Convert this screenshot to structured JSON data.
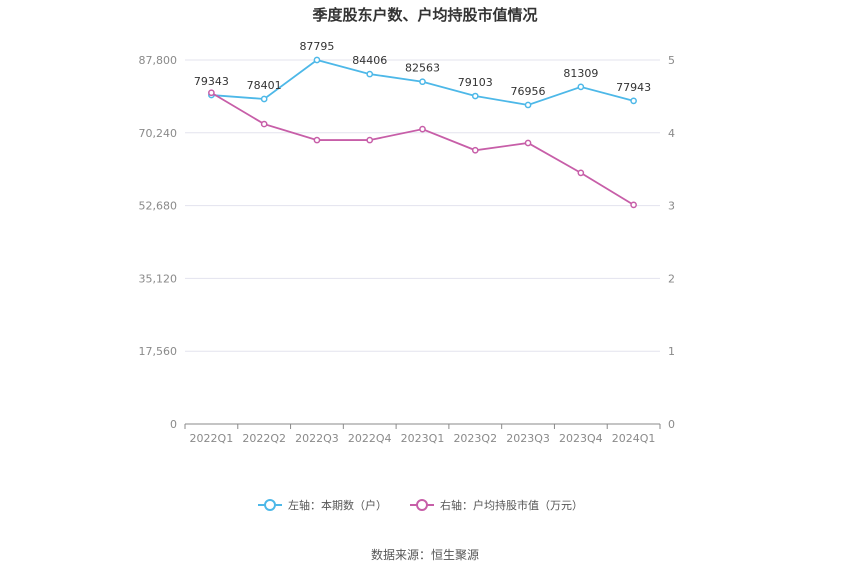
{
  "chart_data": {
    "type": "line",
    "title": "季度股东户数、户均持股市值情况",
    "categories": [
      "2022Q1",
      "2022Q2",
      "2022Q3",
      "2022Q4",
      "2023Q1",
      "2023Q2",
      "2023Q3",
      "2023Q4",
      "2024Q1"
    ],
    "left_axis": {
      "ticks": [
        "0",
        "17,560",
        "35,120",
        "52,680",
        "70,240",
        "87,800"
      ],
      "ylim": [
        0,
        87800
      ]
    },
    "right_axis": {
      "ticks": [
        "0",
        "1",
        "2",
        "3",
        "4",
        "5"
      ],
      "ylim": [
        0,
        5
      ]
    },
    "series": [
      {
        "name": "左轴：本期数（户）",
        "axis": "left",
        "color": "#4db8e8",
        "values": [
          79343,
          78401,
          87795,
          84406,
          82563,
          79103,
          76956,
          81309,
          77943
        ],
        "labels": [
          "79343",
          "78401",
          "87795",
          "84406",
          "82563",
          "79103",
          "76956",
          "81309",
          "77943"
        ]
      },
      {
        "name": "右轴：户均持股市值（万元）",
        "axis": "right",
        "color": "#c75ea8",
        "values": [
          4.55,
          4.12,
          3.9,
          3.9,
          4.05,
          3.76,
          3.86,
          3.45,
          3.01
        ]
      }
    ],
    "grid": true,
    "legend_position": "bottom"
  },
  "source_text": "数据来源：恒生聚源"
}
